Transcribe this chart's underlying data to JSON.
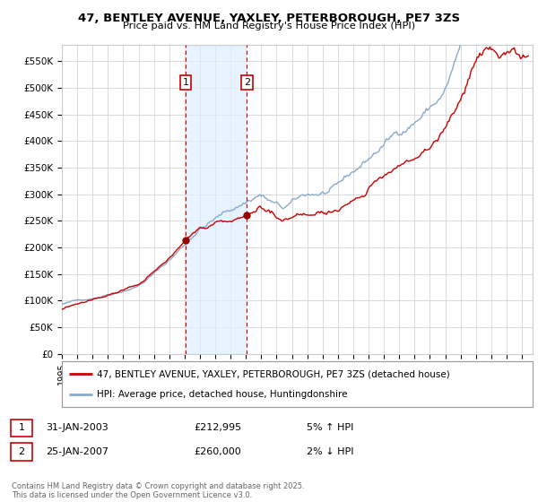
{
  "title_line1": "47, BENTLEY AVENUE, YAXLEY, PETERBOROUGH, PE7 3ZS",
  "title_line2": "Price paid vs. HM Land Registry's House Price Index (HPI)",
  "yticks": [
    0,
    50000,
    100000,
    150000,
    200000,
    250000,
    300000,
    350000,
    400000,
    450000,
    500000,
    550000
  ],
  "ytick_labels": [
    "£0",
    "£50K",
    "£100K",
    "£150K",
    "£200K",
    "£250K",
    "£300K",
    "£350K",
    "£400K",
    "£450K",
    "£500K",
    "£550K"
  ],
  "ylim": [
    0,
    580000
  ],
  "xlim_start": 1995.0,
  "xlim_end": 2025.7,
  "legend_line1": "47, BENTLEY AVENUE, YAXLEY, PETERBOROUGH, PE7 3ZS (detached house)",
  "legend_line2": "HPI: Average price, detached house, Huntingdonshire",
  "sale1_label": "1",
  "sale1_date": "31-JAN-2003",
  "sale1_price": "£212,995",
  "sale1_hpi": "5% ↑ HPI",
  "sale2_label": "2",
  "sale2_date": "25-JAN-2007",
  "sale2_price": "£260,000",
  "sale2_hpi": "2% ↓ HPI",
  "footer": "Contains HM Land Registry data © Crown copyright and database right 2025.\nThis data is licensed under the Open Government Licence v3.0.",
  "sale1_x": 2003.08,
  "sale2_x": 2007.07,
  "sale1_y": 212995,
  "sale2_y": 260000,
  "line_color_red": "#cc0000",
  "line_color_blue": "#88aacc",
  "shaded_color": "#ddeeff",
  "vline_color": "#cc0000",
  "background_color": "#ffffff",
  "grid_color": "#cccccc",
  "marker_dot_color": "#990000"
}
